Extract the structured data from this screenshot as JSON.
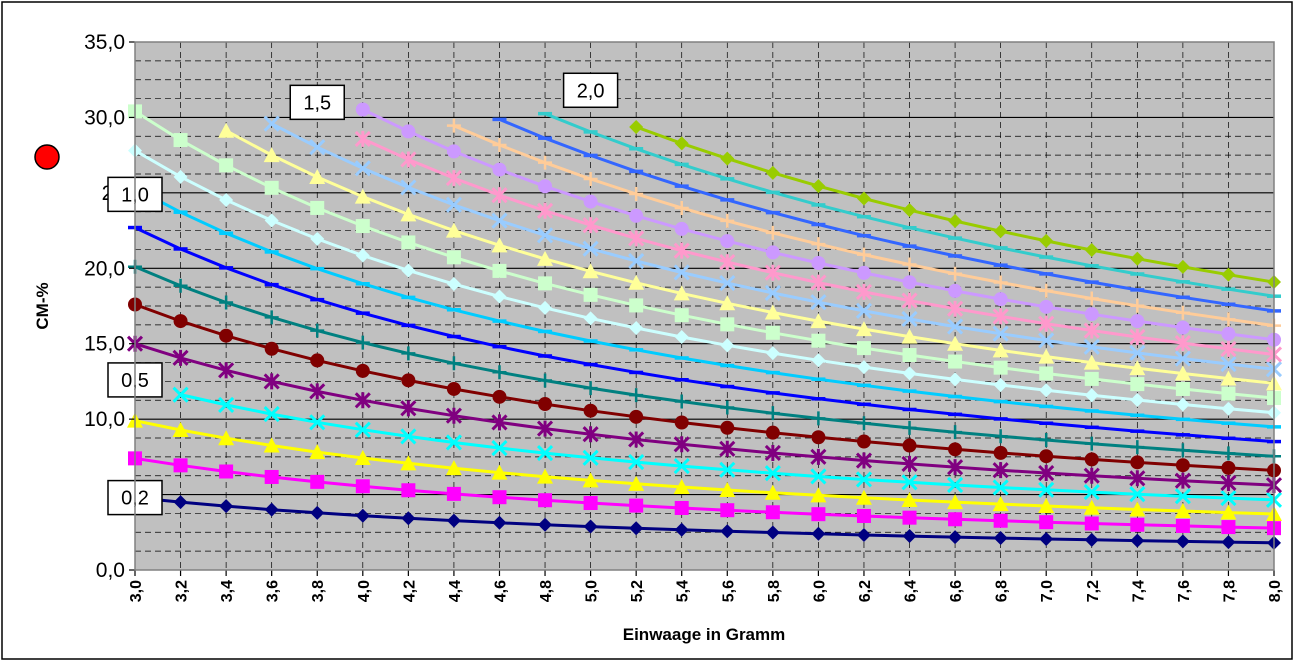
{
  "chart_data": {
    "type": "line",
    "xlabel": "Einwaage in Gramm",
    "ylabel": "CM-%",
    "xlim": [
      3.0,
      8.0
    ],
    "ylim": [
      0,
      35
    ],
    "x_tick_labels": [
      "3,0",
      "3,2",
      "3,4",
      "3,6",
      "3,8",
      "4,0",
      "4,2",
      "4,4",
      "4,6",
      "4,8",
      "5,0",
      "5,2",
      "5,4",
      "5,6",
      "5,8",
      "6,0",
      "6,2",
      "6,4",
      "6,6",
      "6,8",
      "7,0",
      "7,2",
      "7,4",
      "7,6",
      "7,8",
      "8,0"
    ],
    "y_tick_labels": [
      "0,0",
      "5",
      "10,0",
      "15,0",
      "20,0",
      "25",
      "30,0",
      "35,0"
    ],
    "y_tick_values": [
      0,
      5,
      10,
      15,
      20,
      25,
      30,
      35
    ],
    "grid": true,
    "background": "#c0c0c0",
    "x": [
      3.0,
      3.2,
      3.4,
      3.6,
      3.8,
      4.0,
      4.2,
      4.4,
      4.6,
      4.8,
      5.0,
      5.2,
      5.4,
      5.6,
      5.8,
      6.0,
      6.2,
      6.4,
      6.6,
      6.8,
      7.0,
      7.2,
      7.4,
      7.6,
      7.8,
      8.0
    ],
    "series": [
      {
        "k": 14.4,
        "color": "#000080",
        "marker": "diamond",
        "start_x": 3.0
      },
      {
        "k": 22.2,
        "color": "#ff00ff",
        "marker": "square",
        "start_x": 3.0
      },
      {
        "k": 29.7,
        "color": "#ffff00",
        "marker": "triangle",
        "start_x": 3.0
      },
      {
        "k": 37.2,
        "color": "#00ffff",
        "marker": "x",
        "start_x": 3.2
      },
      {
        "k": 45.0,
        "color": "#800080",
        "marker": "star",
        "start_x": 3.0
      },
      {
        "k": 52.8,
        "color": "#800000",
        "marker": "circle",
        "start_x": 3.0
      },
      {
        "k": 60.3,
        "color": "#008080",
        "marker": "plus",
        "start_x": 3.0
      },
      {
        "k": 68.1,
        "color": "#0000ff",
        "marker": "dash",
        "start_x": 3.0
      },
      {
        "k": 75.9,
        "color": "#00ccff",
        "marker": "dash",
        "start_x": 3.0
      },
      {
        "k": 83.4,
        "color": "#ccffff",
        "marker": "diamond",
        "start_x": 3.0
      },
      {
        "k": 91.2,
        "color": "#ccffcc",
        "marker": "square",
        "start_x": 3.0
      },
      {
        "k": 99.0,
        "color": "#ffff99",
        "marker": "triangle",
        "start_x": 3.4
      },
      {
        "k": 106.5,
        "color": "#99ccff",
        "marker": "x",
        "start_x": 3.6
      },
      {
        "k": 114.3,
        "color": "#ff99cc",
        "marker": "star",
        "start_x": 4.0
      },
      {
        "k": 122.1,
        "color": "#cc99ff",
        "marker": "circle",
        "start_x": 4.0
      },
      {
        "k": 129.6,
        "color": "#ffcc99",
        "marker": "plus",
        "start_x": 4.4
      },
      {
        "k": 137.4,
        "color": "#3366ff",
        "marker": "dash",
        "start_x": 4.6
      },
      {
        "k": 145.2,
        "color": "#33cccc",
        "marker": "dash",
        "start_x": 4.8
      },
      {
        "k": 152.7,
        "color": "#99cc00",
        "marker": "diamond",
        "start_x": 5.2
      }
    ],
    "annotations": [
      {
        "text": "0,2",
        "x": 3.0,
        "y": 4.8
      },
      {
        "text": "0,5",
        "x": 3.0,
        "y": 12.6
      },
      {
        "text": "1,0",
        "x": 3.0,
        "y": 24.9
      },
      {
        "text": "1,5",
        "x": 3.8,
        "y": 31.0
      },
      {
        "text": "2,0",
        "x": 5.0,
        "y": 31.8
      }
    ],
    "legend_marker_color": "#ff0000"
  }
}
